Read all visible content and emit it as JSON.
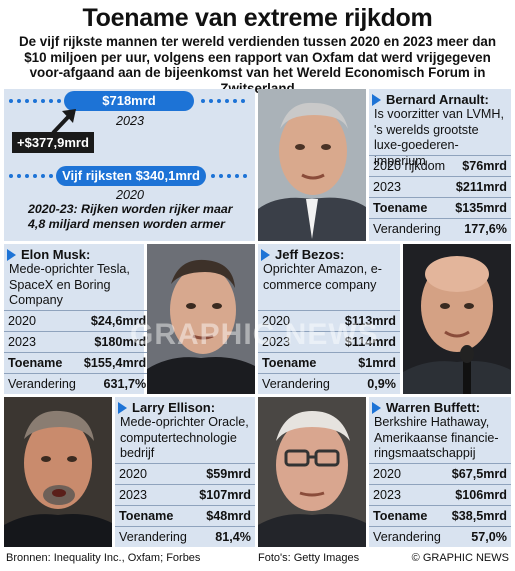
{
  "header": {
    "title": "Toename van extreme rijkdom",
    "subtitle": "De vijf rijkste mannen ter wereld verdienden tussen 2020 en 2023 meer dan $10 miljoen per uur, volgens een rapport van Oxfam dat werd vrijgegeven voor-afgaand aan de bijeenkomst van het Wereld Economisch Forum in Zwitserland"
  },
  "chart_data": {
    "type": "table",
    "title": "Toename van extreme rijkdom",
    "summary": {
      "top_label": "$718mrd",
      "top_year": "2023",
      "diff_label": "+$377,9mrd",
      "bottom_label": "Vijf rijksten $340,1mrd",
      "bottom_year": "2020",
      "note": "2020-23: Rijken worden rijker maar 4,8 miljard mensen worden armer",
      "values": [
        {
          "year": 2020,
          "value": 340.1
        },
        {
          "year": 2023,
          "value": 718
        }
      ],
      "difference": 377.9,
      "unit": "mrd $"
    },
    "people": [
      {
        "name": "Bernard Arnault:",
        "role": "Is voorzitter van LVMH, 's werelds grootste luxe-goederen-imperium",
        "rows": [
          [
            "2020 rijkdom",
            "$76mrd"
          ],
          [
            "2023",
            "$211mrd"
          ],
          [
            "Toename",
            "$135mrd"
          ],
          [
            "Verandering",
            "177,6%"
          ]
        ]
      },
      {
        "name": "Elon Musk:",
        "role": "Mede-oprichter Tesla, SpaceX en Boring Company",
        "rows": [
          [
            "2020",
            "$24,6mrd"
          ],
          [
            "2023",
            "$180mrd"
          ],
          [
            "Toename",
            "$155,4mrd"
          ],
          [
            "Verandering",
            "631,7%"
          ]
        ]
      },
      {
        "name": "Jeff Bezos:",
        "role": "Oprichter Amazon, e-commerce company",
        "rows": [
          [
            "2020",
            "$113mrd"
          ],
          [
            "2023",
            "$114mrd"
          ],
          [
            "Toename",
            "$1mrd"
          ],
          [
            "Verandering",
            "0,9%"
          ]
        ]
      },
      {
        "name": "Larry Ellison:",
        "role": "Mede-oprichter Oracle, computertechnologie bedrijf",
        "rows": [
          [
            "2020",
            "$59mrd"
          ],
          [
            "2023",
            "$107mrd"
          ],
          [
            "Toename",
            "$48mrd"
          ],
          [
            "Verandering",
            "81,4%"
          ]
        ]
      },
      {
        "name": "Warren Buffett:",
        "role": "Berkshire Hathaway, Amerikaanse financie-ringsmaatschappij",
        "rows": [
          [
            "2020",
            "$67,5mrd"
          ],
          [
            "2023",
            "$106mrd"
          ],
          [
            "Toename",
            "$38,5mrd"
          ],
          [
            "Verandering",
            "57,0%"
          ]
        ]
      }
    ]
  },
  "footer": {
    "sources": "Bronnen: Inequality Inc., Oxfam; Forbes",
    "photos": "Foto's: Getty Images",
    "credit": "© GRAPHIC NEWS"
  },
  "watermark": "GRAPHIC NEWS",
  "colors": {
    "accent": "#1d73d6",
    "panel": "#d9e3f0",
    "dark": "#1a1a1a"
  }
}
